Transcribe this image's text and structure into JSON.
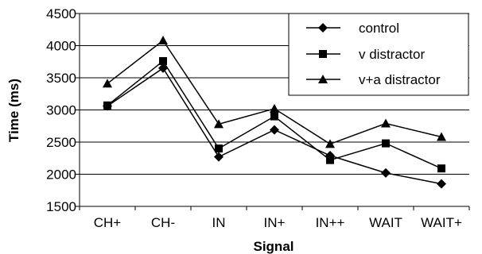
{
  "chart_data": {
    "type": "line",
    "categories": [
      "CH+",
      "CH-",
      "IN",
      "IN+",
      "IN++",
      "WAIT",
      "WAIT+"
    ],
    "xlabel": "Signal",
    "ylabel": "Time (ms)",
    "ylim": [
      1500,
      4500
    ],
    "yticks": [
      1500,
      2000,
      2500,
      3000,
      3500,
      4000,
      4500
    ],
    "grid": "horizontal",
    "legend_position": "top-right",
    "series": [
      {
        "name": "control",
        "marker": "diamond",
        "values": [
          3060,
          3650,
          2270,
          2690,
          2290,
          2020,
          1850
        ]
      },
      {
        "name": "v distractor",
        "marker": "square",
        "values": [
          3070,
          3760,
          2400,
          2900,
          2220,
          2480,
          2090
        ]
      },
      {
        "name": "v+a distractor",
        "marker": "triangle",
        "values": [
          3410,
          4080,
          2780,
          3020,
          2470,
          2790,
          2580
        ]
      }
    ]
  }
}
